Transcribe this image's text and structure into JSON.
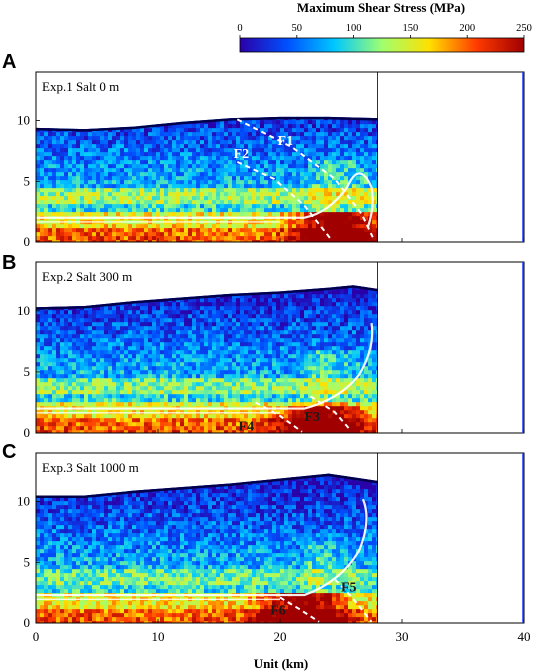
{
  "chart_data": {
    "type": "heatmap",
    "colorbar": {
      "title": "Maximum Shear Stress (MPa)",
      "range": [
        0,
        250
      ],
      "ticks": [
        0,
        50,
        100,
        150,
        200,
        250
      ],
      "colors": [
        "#2a00a8",
        "#0050ff",
        "#00c8ff",
        "#a0ff70",
        "#ffe000",
        "#ff3a00",
        "#a00000"
      ]
    },
    "x_axis": {
      "label": "Unit (km)",
      "range": [
        0,
        40
      ],
      "ticks": [
        0,
        10,
        20,
        30,
        40
      ]
    },
    "y_axis": {
      "range": [
        0,
        14
      ],
      "ticks": [
        0,
        5,
        10
      ]
    },
    "model_right_edge_km": 28,
    "panels": [
      {
        "letter": "A",
        "label": "Exp.1 Salt    0 m",
        "surface": [
          [
            0,
            9.4
          ],
          [
            4,
            9.3
          ],
          [
            8,
            9.5
          ],
          [
            12,
            9.9
          ],
          [
            16,
            10.2
          ],
          [
            20,
            10.3
          ],
          [
            24,
            10.3
          ],
          [
            28,
            10.2
          ]
        ],
        "faults": [
          {
            "name": "F1",
            "label_at": [
              19.8,
              8.0
            ],
            "line": [
              [
                16.5,
                10.1
              ],
              [
                21,
                7.8
              ],
              [
                24.5,
                5.2
              ],
              [
                26.7,
                2.3
              ],
              [
                27.6,
                0.4
              ]
            ]
          },
          {
            "name": "F2",
            "label_at": [
              16.2,
              6.9
            ],
            "line": [
              [
                16.5,
                6.6
              ],
              [
                19.5,
                5.2
              ],
              [
                22,
                3.0
              ],
              [
                24.2,
                0.2
              ]
            ]
          }
        ]
      },
      {
        "letter": "B",
        "label": "Exp.2 Salt   300 m",
        "surface": [
          [
            0,
            10.3
          ],
          [
            4,
            10.4
          ],
          [
            8,
            10.8
          ],
          [
            12,
            11.1
          ],
          [
            16,
            11.4
          ],
          [
            20,
            11.6
          ],
          [
            24,
            11.9
          ],
          [
            26,
            12.1
          ],
          [
            28,
            11.8
          ]
        ],
        "faults": [
          {
            "name": "F3",
            "label_at": [
              22,
              1.0
            ],
            "line": [
              [
                22.5,
                3.0
              ],
              [
                24.5,
                1.7
              ],
              [
                25.8,
                0.2
              ]
            ]
          },
          {
            "name": "F4",
            "label_at": [
              16.6,
              0.2
            ],
            "line": [
              [
                18,
                2.5
              ],
              [
                20,
                1.4
              ],
              [
                21.8,
                0.1
              ]
            ]
          }
        ]
      },
      {
        "letter": "C",
        "label": "Exp.3 Salt  1000 m",
        "surface": [
          [
            0,
            10.5
          ],
          [
            4,
            10.5
          ],
          [
            8,
            10.9
          ],
          [
            12,
            11.2
          ],
          [
            16,
            11.5
          ],
          [
            20,
            11.9
          ],
          [
            24,
            12.3
          ],
          [
            26,
            12.0
          ],
          [
            28,
            11.7
          ]
        ],
        "faults": [
          {
            "name": "F5",
            "label_at": [
              25,
              2.6
            ],
            "line": [
              [
                24.5,
                3.6
              ],
              [
                26,
                2.0
              ],
              [
                27.5,
                0.1
              ]
            ]
          },
          {
            "name": "F6",
            "label_at": [
              19.2,
              0.7
            ],
            "line": [
              [
                20,
                2.1
              ],
              [
                21.5,
                1.2
              ],
              [
                23.2,
                0.1
              ]
            ]
          }
        ]
      }
    ]
  }
}
